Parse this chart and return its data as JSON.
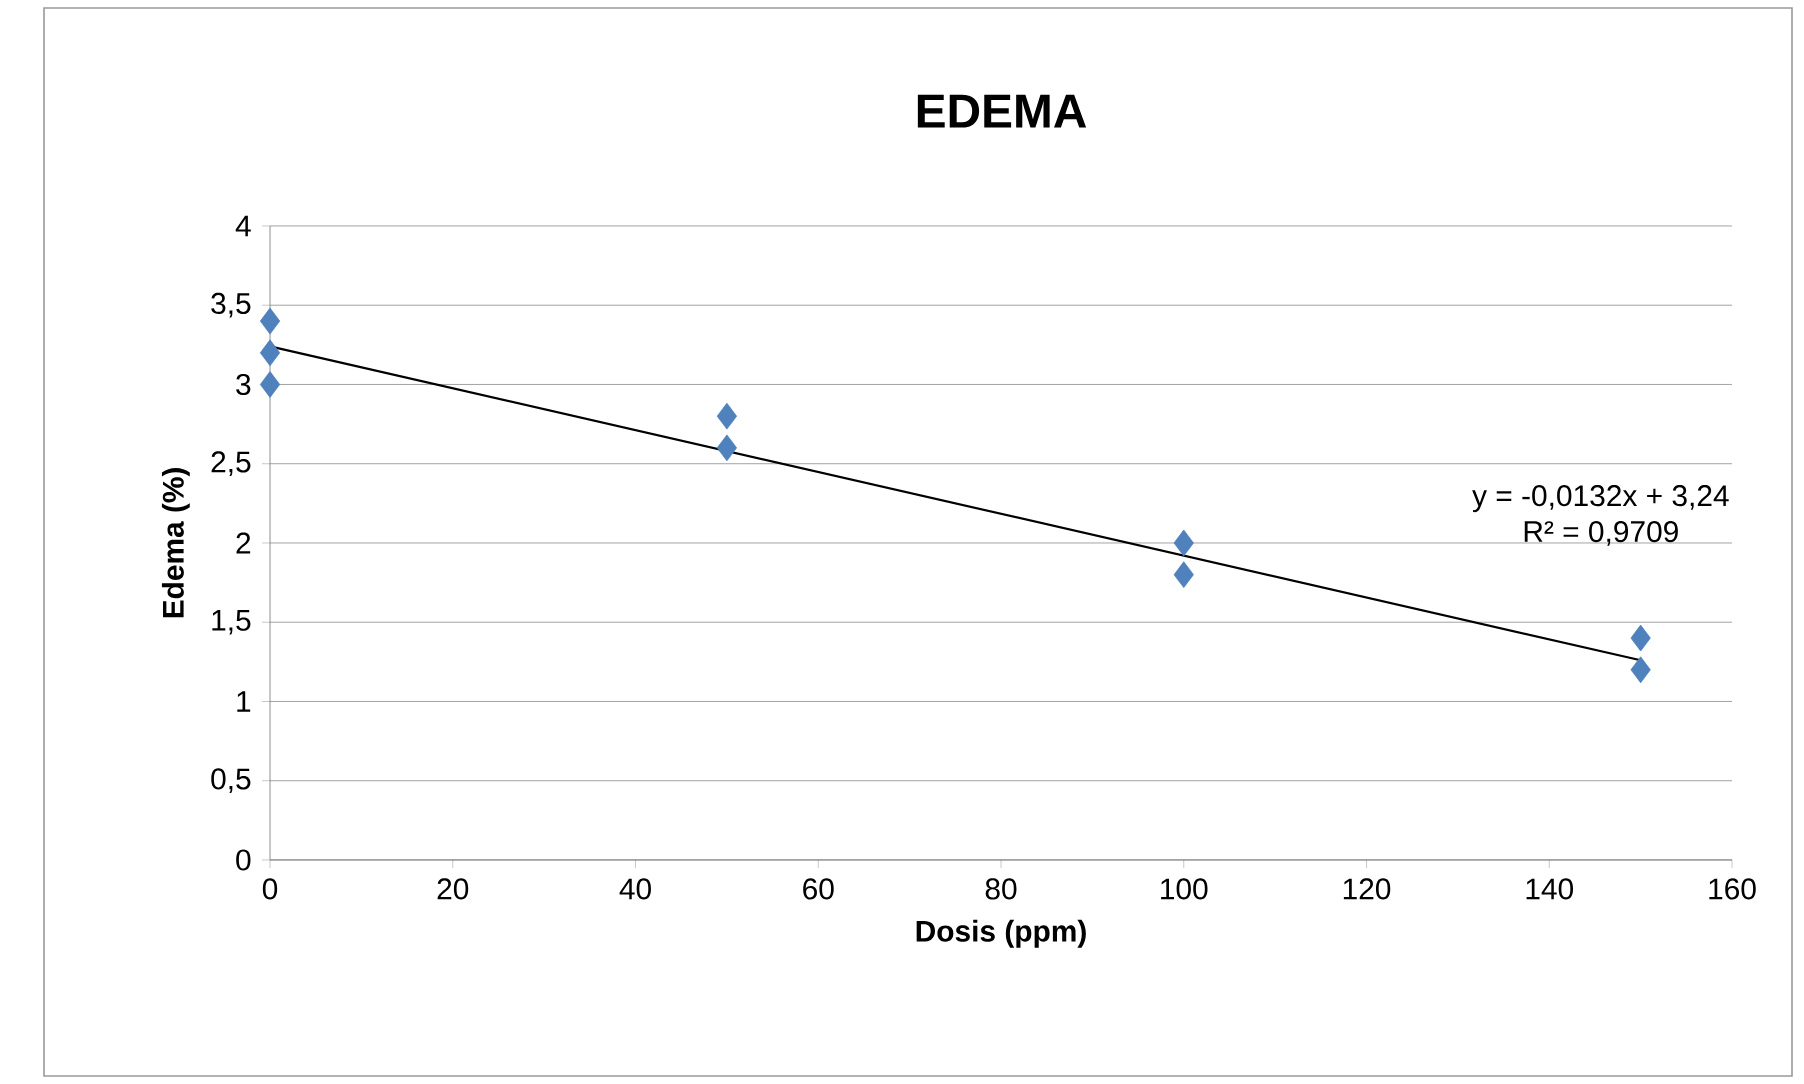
{
  "chart_data": {
    "type": "scatter",
    "title": "EDEMA",
    "xlabel": "Dosis (ppm)",
    "ylabel": "Edema (%)",
    "series": [
      {
        "color": "#4f81bd",
        "marker": "diamond",
        "x": [
          0,
          0,
          0,
          50,
          50,
          100,
          100,
          150,
          150
        ],
        "values": [
          3.4,
          3.2,
          3.0,
          2.8,
          2.6,
          2.0,
          1.8,
          1.4,
          1.2
        ]
      },
      {
        "type": "line",
        "color": "#000000",
        "marker": "none",
        "x": [
          0,
          150
        ],
        "values": [
          3.24,
          1.26
        ]
      }
    ],
    "xlim": [
      0,
      160
    ],
    "xticks": [
      0,
      20,
      40,
      60,
      80,
      100,
      120,
      140,
      160
    ],
    "ylim": [
      0,
      4
    ],
    "yticks": [
      0,
      {
        "value": 0.5,
        "label": "0,5"
      },
      1,
      {
        "value": 1.5,
        "label": "1,5"
      },
      2,
      {
        "value": 2.5,
        "label": "2,5"
      },
      3,
      {
        "value": 3.5,
        "label": "3,5"
      },
      4
    ],
    "grid": "y",
    "annotations": [
      "y = -0,0132x + 3,24",
      "R² = 0,9709"
    ]
  }
}
